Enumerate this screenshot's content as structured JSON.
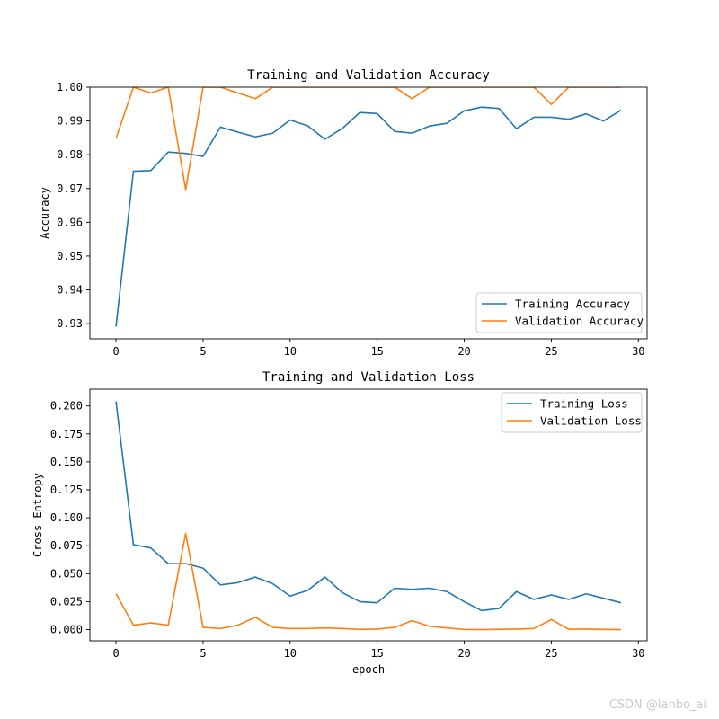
{
  "watermark": "CSDN @lanbo_ai",
  "colors": {
    "training": "#1f77b4",
    "validation": "#ff7f0e"
  },
  "chart_data": [
    {
      "type": "line",
      "title": "Training and Validation Accuracy",
      "xlabel": "",
      "ylabel": "Accuracy",
      "xlim": [
        -1.5,
        30.5
      ],
      "ylim": [
        0.9255,
        1.0
      ],
      "xticks": [
        0,
        5,
        10,
        15,
        20,
        25,
        30
      ],
      "yticks": [
        0.93,
        0.94,
        0.95,
        0.96,
        0.97,
        0.98,
        0.99,
        1.0
      ],
      "ytick_labels": [
        "0.93",
        "0.94",
        "0.95",
        "0.96",
        "0.97",
        "0.98",
        "0.99",
        "1.00"
      ],
      "legend_position": "lower-right",
      "x": [
        0,
        1,
        2,
        3,
        4,
        5,
        6,
        7,
        8,
        9,
        10,
        11,
        12,
        13,
        14,
        15,
        16,
        17,
        18,
        19,
        20,
        21,
        22,
        23,
        24,
        25,
        26,
        27,
        28,
        29
      ],
      "series": [
        {
          "name": "Training Accuracy",
          "values": [
            0.9291,
            0.9751,
            0.9753,
            0.9808,
            0.9804,
            0.9795,
            0.9882,
            0.9867,
            0.9853,
            0.9864,
            0.9903,
            0.9886,
            0.9846,
            0.9878,
            0.9925,
            0.9922,
            0.9869,
            0.9864,
            0.9885,
            0.9893,
            0.993,
            0.9941,
            0.9937,
            0.9877,
            0.9911,
            0.9911,
            0.9905,
            0.9921,
            0.99,
            0.9932
          ]
        },
        {
          "name": "Validation Accuracy",
          "values": [
            0.9848,
            1.0,
            0.9983,
            1.0,
            0.9697,
            1.0,
            1.0,
            0.9983,
            0.9966,
            1.0,
            1.0,
            1.0,
            1.0,
            1.0,
            1.0,
            1.0,
            1.0,
            0.9966,
            1.0,
            1.0,
            1.0,
            1.0,
            1.0,
            1.0,
            1.0,
            0.9949,
            1.0,
            1.0,
            1.0,
            1.0
          ]
        }
      ]
    },
    {
      "type": "line",
      "title": "Training and Validation Loss",
      "xlabel": "epoch",
      "ylabel": "Cross Entropy",
      "xlim": [
        -1.5,
        30.5
      ],
      "ylim": [
        -0.01,
        0.215
      ],
      "xticks": [
        0,
        5,
        10,
        15,
        20,
        25,
        30
      ],
      "yticks": [
        0.0,
        0.025,
        0.05,
        0.075,
        0.1,
        0.125,
        0.15,
        0.175,
        0.2
      ],
      "ytick_labels": [
        "0.000",
        "0.025",
        "0.050",
        "0.075",
        "0.100",
        "0.125",
        "0.150",
        "0.175",
        "0.200"
      ],
      "legend_position": "upper-right",
      "x": [
        0,
        1,
        2,
        3,
        4,
        5,
        6,
        7,
        8,
        9,
        10,
        11,
        12,
        13,
        14,
        15,
        16,
        17,
        18,
        19,
        20,
        21,
        22,
        23,
        24,
        25,
        26,
        27,
        28,
        29
      ],
      "series": [
        {
          "name": "Training Loss",
          "values": [
            0.204,
            0.076,
            0.073,
            0.059,
            0.059,
            0.055,
            0.04,
            0.042,
            0.047,
            0.041,
            0.03,
            0.035,
            0.047,
            0.033,
            0.025,
            0.024,
            0.037,
            0.036,
            0.037,
            0.034,
            0.025,
            0.017,
            0.019,
            0.034,
            0.027,
            0.031,
            0.027,
            0.032,
            0.028,
            0.024
          ]
        },
        {
          "name": "Validation Loss",
          "values": [
            0.032,
            0.004,
            0.006,
            0.004,
            0.086,
            0.002,
            0.001,
            0.004,
            0.011,
            0.002,
            0.001,
            0.001,
            0.0015,
            0.001,
            0.0002,
            0.0005,
            0.002,
            0.008,
            0.003,
            0.0015,
            0.0002,
            0.0,
            0.0003,
            0.0005,
            0.001,
            0.009,
            0.0003,
            0.0005,
            0.0002,
            0.0
          ]
        }
      ]
    }
  ]
}
